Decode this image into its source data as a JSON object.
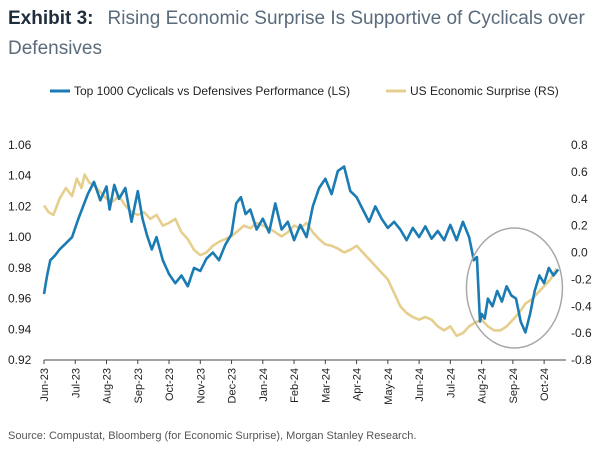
{
  "header": {
    "exhibit": "Exhibit 3:",
    "title": "Rising Economic Surprise Is Supportive of Cyclicals over Defensives"
  },
  "source": "Source: Compustat, Bloomberg (for Economic Surprise), Morgan Stanley Research.",
  "colors": {
    "cyclicals": "#1b7bb3",
    "surprise": "#e6cf8e",
    "circle": "#a8a8a8",
    "axis": "#444444",
    "text": "#222222"
  },
  "chart_data": {
    "type": "line",
    "legend": [
      "Top 1000 Cyclicals vs Defensives Performance (LS)",
      "US Economic Surprise (RS)"
    ],
    "legend_position": "top",
    "grid": false,
    "x_ticks": [
      "Jun-23",
      "Jul-23",
      "Aug-23",
      "Sep-23",
      "Oct-23",
      "Nov-23",
      "Dec-23",
      "Jan-24",
      "Feb-24",
      "Mar-24",
      "Apr-24",
      "May-24",
      "Jun-24",
      "Jul-24",
      "Aug-24",
      "Sep-24",
      "Oct-24"
    ],
    "y_left": {
      "lim": [
        0.92,
        1.06
      ],
      "ticks": [
        "0.92",
        "0.94",
        "0.96",
        "0.98",
        "1.00",
        "1.02",
        "1.04",
        "1.06"
      ]
    },
    "y_right": {
      "lim": [
        -0.8,
        0.8
      ],
      "ticks": [
        "-0.8",
        "-0.6",
        "-0.4",
        "-0.2",
        "0.0",
        "0.2",
        "0.4",
        "0.6",
        "0.8"
      ]
    },
    "x_range": [
      0,
      16.7
    ],
    "series": [
      {
        "name": "Top 1000 Cyclicals vs Defensives Performance (LS)",
        "axis": "left",
        "x": [
          0,
          0.1,
          0.2,
          0.35,
          0.5,
          0.7,
          0.9,
          1.1,
          1.25,
          1.4,
          1.6,
          1.8,
          2.0,
          2.1,
          2.25,
          2.4,
          2.6,
          2.8,
          3.0,
          3.15,
          3.3,
          3.45,
          3.6,
          3.8,
          4.0,
          4.2,
          4.4,
          4.6,
          4.8,
          5.0,
          5.2,
          5.4,
          5.6,
          5.8,
          6.0,
          6.15,
          6.3,
          6.45,
          6.6,
          6.8,
          7.0,
          7.2,
          7.4,
          7.6,
          7.8,
          8.0,
          8.2,
          8.4,
          8.6,
          8.8,
          9.0,
          9.2,
          9.4,
          9.6,
          9.8,
          10.0,
          10.2,
          10.4,
          10.6,
          10.8,
          11.0,
          11.2,
          11.4,
          11.6,
          11.8,
          12.0,
          12.2,
          12.4,
          12.6,
          12.8,
          13.0,
          13.2,
          13.4,
          13.6,
          13.75,
          13.85,
          13.95,
          14.0,
          14.1,
          14.2,
          14.35,
          14.5,
          14.65,
          14.8,
          14.95,
          15.1,
          15.25,
          15.4,
          15.55,
          15.7,
          15.85,
          16.0,
          16.15,
          16.3,
          16.45
        ],
        "values": [
          0.963,
          0.975,
          0.985,
          0.988,
          0.992,
          0.996,
          1.0,
          1.012,
          1.02,
          1.028,
          1.036,
          1.024,
          1.033,
          1.018,
          1.034,
          1.025,
          1.032,
          1.01,
          1.03,
          1.012,
          1.001,
          0.992,
          1.0,
          0.985,
          0.976,
          0.97,
          0.975,
          0.968,
          0.98,
          0.978,
          0.986,
          0.99,
          0.985,
          0.995,
          1.002,
          1.022,
          1.026,
          1.015,
          1.018,
          1.005,
          1.012,
          1.003,
          1.022,
          1.005,
          1.01,
          0.998,
          1.008,
          1.0,
          1.02,
          1.032,
          1.038,
          1.028,
          1.043,
          1.046,
          1.03,
          1.026,
          1.018,
          1.01,
          1.02,
          1.012,
          1.006,
          1.01,
          1.005,
          0.998,
          1.006,
          1.0,
          1.007,
          0.999,
          1.004,
          0.998,
          1.008,
          0.998,
          1.01,
          1.0,
          0.985,
          0.987,
          0.945,
          0.95,
          0.947,
          0.96,
          0.955,
          0.965,
          0.958,
          0.968,
          0.962,
          0.96,
          0.945,
          0.938,
          0.95,
          0.965,
          0.975,
          0.97,
          0.98,
          0.975,
          0.979
        ]
      },
      {
        "name": "US Economic Surprise (RS)",
        "axis": "right",
        "x": [
          0,
          0.15,
          0.3,
          0.5,
          0.7,
          0.9,
          1.05,
          1.2,
          1.3,
          1.45,
          1.6,
          1.8,
          2.0,
          2.2,
          2.4,
          2.6,
          2.8,
          3.0,
          3.2,
          3.4,
          3.6,
          3.8,
          4.0,
          4.2,
          4.4,
          4.6,
          4.8,
          5.0,
          5.2,
          5.4,
          5.6,
          5.8,
          6.0,
          6.2,
          6.4,
          6.6,
          6.8,
          7.0,
          7.2,
          7.4,
          7.6,
          7.8,
          8.0,
          8.2,
          8.4,
          8.6,
          8.8,
          9.0,
          9.2,
          9.4,
          9.6,
          9.8,
          10.0,
          10.2,
          10.4,
          10.6,
          10.8,
          11.0,
          11.2,
          11.4,
          11.6,
          11.8,
          12.0,
          12.2,
          12.4,
          12.6,
          12.8,
          13.0,
          13.2,
          13.4,
          13.6,
          13.8,
          14.0,
          14.2,
          14.4,
          14.6,
          14.8,
          15.0,
          15.2,
          15.4,
          15.6,
          15.8,
          16.0,
          16.2,
          16.4
        ],
        "values": [
          0.35,
          0.3,
          0.28,
          0.4,
          0.48,
          0.42,
          0.55,
          0.48,
          0.58,
          0.52,
          0.5,
          0.45,
          0.4,
          0.38,
          0.42,
          0.35,
          0.3,
          0.28,
          0.3,
          0.25,
          0.28,
          0.2,
          0.22,
          0.25,
          0.15,
          0.1,
          0.02,
          -0.02,
          0.0,
          0.05,
          0.08,
          0.1,
          0.12,
          0.16,
          0.2,
          0.18,
          0.22,
          0.2,
          0.18,
          0.15,
          0.12,
          0.15,
          0.2,
          0.18,
          0.22,
          0.15,
          0.1,
          0.06,
          0.05,
          0.03,
          0.0,
          0.02,
          0.05,
          0.0,
          -0.05,
          -0.1,
          -0.15,
          -0.2,
          -0.3,
          -0.4,
          -0.45,
          -0.48,
          -0.5,
          -0.48,
          -0.5,
          -0.55,
          -0.58,
          -0.55,
          -0.62,
          -0.6,
          -0.55,
          -0.52,
          -0.5,
          -0.55,
          -0.58,
          -0.58,
          -0.55,
          -0.5,
          -0.45,
          -0.38,
          -0.35,
          -0.3,
          -0.25,
          -0.2,
          -0.12
        ]
      }
    ]
  }
}
